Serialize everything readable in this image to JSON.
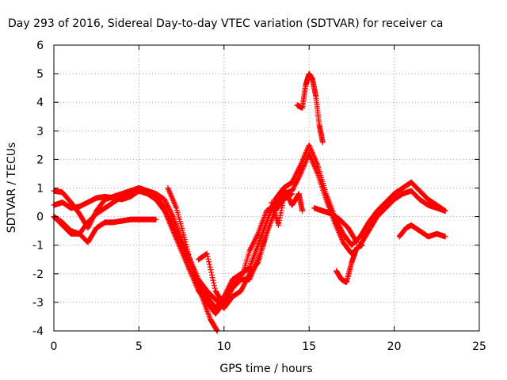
{
  "chart_data": {
    "type": "scatter",
    "title": "Day 293 of 2016, Sidereal Day-to-day VTEC variation (SDTVAR) for receiver ca",
    "xlabel": "GPS time / hours",
    "ylabel": "SDTVAR / TECUs",
    "xlim": [
      0,
      25
    ],
    "ylim": [
      -4,
      6
    ],
    "x_ticks": [
      "0",
      "5",
      "10",
      "15",
      "20",
      "25"
    ],
    "y_ticks": [
      "-4",
      "-3",
      "-2",
      "-1",
      "0",
      "1",
      "2",
      "3",
      "4",
      "5",
      "6"
    ],
    "grid": true,
    "marker": "+",
    "color": "#ff0000",
    "series": [
      {
        "x": [
          0.0,
          0.5,
          1.0,
          1.5,
          2.0,
          2.5,
          3.0,
          3.5,
          4.0,
          4.5,
          5.0,
          5.5,
          6.0,
          6.5,
          7.0,
          7.5,
          8.0,
          8.5,
          9.0,
          9.5,
          10.0,
          10.5,
          11.0,
          11.5,
          12.0,
          12.5,
          13.0,
          13.5,
          14.0,
          14.5,
          15.0,
          15.5,
          16.0,
          16.5,
          17.0,
          17.5,
          18.0,
          18.5,
          19.0,
          19.5,
          20.0,
          20.5,
          21.0,
          21.5,
          22.0,
          22.5,
          23.0
        ],
        "y": [
          0.9,
          0.85,
          0.5,
          0.1,
          -0.4,
          0.2,
          0.6,
          0.7,
          0.8,
          0.9,
          1.0,
          0.9,
          0.7,
          0.3,
          -0.3,
          -1.0,
          -1.6,
          -2.3,
          -2.8,
          -3.2,
          -2.8,
          -2.2,
          -2.0,
          -1.8,
          -1.0,
          -0.2,
          0.6,
          1.0,
          1.2,
          1.8,
          2.5,
          1.8,
          0.8,
          0.0,
          -0.6,
          -1.0,
          -0.7,
          -0.2,
          0.2,
          0.5,
          0.8,
          1.0,
          1.2,
          0.9,
          0.6,
          0.4,
          0.2
        ]
      },
      {
        "x": [
          0.0,
          0.5,
          1.0,
          1.5,
          2.0,
          2.5,
          3.0,
          3.5,
          4.0,
          4.5,
          5.0,
          5.5,
          6.0,
          6.5,
          7.0,
          7.5,
          8.0,
          8.5,
          9.0,
          9.5,
          10.0,
          10.5,
          11.0,
          11.5,
          12.0,
          12.5,
          13.0,
          13.5,
          14.0,
          14.5,
          15.0,
          15.5,
          16.0,
          16.5,
          17.0,
          17.5,
          18.0,
          18.5,
          19.0,
          19.5,
          20.0,
          20.5,
          21.0,
          21.5,
          22.0,
          22.5,
          23.0
        ],
        "y": [
          0.4,
          0.5,
          0.3,
          0.35,
          0.5,
          0.65,
          0.7,
          0.65,
          0.6,
          0.7,
          0.9,
          0.8,
          0.6,
          0.2,
          -0.5,
          -1.2,
          -1.9,
          -2.6,
          -3.0,
          -3.4,
          -3.0,
          -2.4,
          -2.2,
          -1.2,
          -0.6,
          0.2,
          0.4,
          0.8,
          0.9,
          1.5,
          2.2,
          1.5,
          0.6,
          -0.2,
          -0.9,
          -1.3,
          -1.0,
          -0.5,
          0.0,
          0.3,
          0.6,
          0.8,
          0.9,
          0.6,
          0.4,
          0.3,
          0.2
        ]
      },
      {
        "x": [
          0.0,
          0.5,
          1.0,
          1.5,
          2.0,
          2.5,
          3.0,
          3.5,
          4.0,
          4.5,
          5.0,
          5.5,
          6.0,
          6.5,
          7.0,
          7.5,
          8.0,
          8.5,
          9.0,
          9.5,
          10.0,
          10.5,
          11.0,
          11.5,
          12.0,
          12.5,
          13.0,
          13.5,
          14.0
        ],
        "y": [
          0.0,
          -0.3,
          -0.6,
          -0.6,
          -0.2,
          0.1,
          0.3,
          0.5,
          0.7,
          0.8,
          1.0,
          0.9,
          0.8,
          0.6,
          0.0,
          -0.8,
          -1.5,
          -2.2,
          -2.6,
          -2.9,
          -3.2,
          -2.8,
          -2.6,
          -2.0,
          -1.6,
          -0.6,
          0.2,
          0.6,
          0.8
        ]
      },
      {
        "x": [
          0.0,
          0.5,
          1.0,
          1.5,
          2.0,
          2.5,
          3.0,
          3.5,
          4.0,
          4.5,
          5.0,
          5.5,
          6.0
        ],
        "y": [
          0.0,
          -0.2,
          -0.5,
          -0.6,
          -0.9,
          -0.4,
          -0.2,
          -0.2,
          -0.15,
          -0.1,
          -0.1,
          -0.1,
          -0.1
        ]
      },
      {
        "x": [
          6.7,
          7.2,
          7.7,
          8.2,
          8.7,
          9.2,
          9.6
        ],
        "y": [
          1.0,
          0.3,
          -0.8,
          -2.0,
          -2.8,
          -3.6,
          -4.0
        ]
      },
      {
        "x": [
          8.5,
          9.0,
          9.5,
          10.0,
          10.5,
          11.0,
          11.5,
          12.0,
          12.5
        ],
        "y": [
          -1.5,
          -1.3,
          -2.6,
          -3.1,
          -2.5,
          -2.2,
          -2.2,
          -1.5,
          -0.6
        ]
      },
      {
        "x": [
          12.8,
          13.2,
          13.6,
          14.0,
          14.4,
          14.6
        ],
        "y": [
          0.5,
          -0.3,
          0.9,
          0.4,
          0.8,
          0.2
        ]
      },
      {
        "x": [
          14.3,
          14.6,
          14.8,
          15.0,
          15.2,
          15.4,
          15.6,
          15.8
        ],
        "y": [
          3.9,
          3.8,
          4.6,
          5.0,
          4.8,
          4.2,
          3.2,
          2.6
        ]
      },
      {
        "x": [
          15.3,
          15.8,
          16.3,
          16.8,
          17.3,
          17.8
        ],
        "y": [
          0.3,
          0.2,
          0.1,
          -0.1,
          -0.4,
          -0.9
        ]
      },
      {
        "x": [
          16.6,
          16.9,
          17.2,
          17.5,
          17.8,
          18.1
        ],
        "y": [
          -1.9,
          -2.2,
          -2.3,
          -1.6,
          -1.1,
          -1.0
        ]
      },
      {
        "x": [
          20.3,
          20.7,
          21.0,
          21.5,
          22.0,
          22.5,
          23.0
        ],
        "y": [
          -0.7,
          -0.4,
          -0.3,
          -0.5,
          -0.7,
          -0.6,
          -0.7
        ]
      }
    ]
  }
}
